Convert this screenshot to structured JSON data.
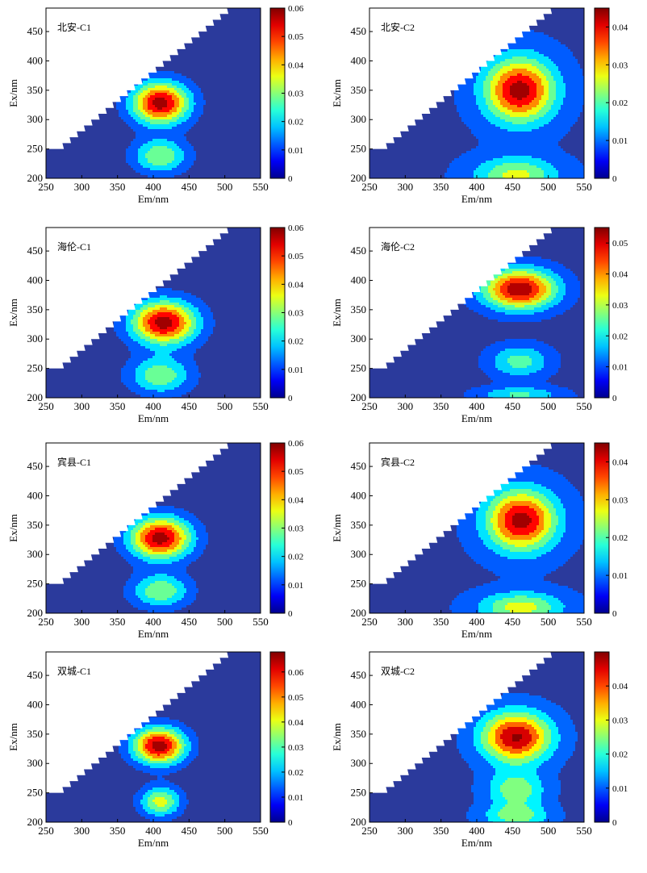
{
  "chart_data": [
    {
      "type": "heatmap",
      "panel_label": "北安-C1",
      "xlabel": "Em/nm",
      "ylabel": "Ex/nm",
      "xlim": [
        250,
        550
      ],
      "ylim": [
        200,
        490
      ],
      "xticks": [
        "250",
        "300",
        "350",
        "400",
        "450",
        "500",
        "550"
      ],
      "yticks": [
        "200",
        "250",
        "300",
        "350",
        "400",
        "450"
      ],
      "colorbar_ticks": [
        "0",
        "0.01",
        "0.02",
        "0.03",
        "0.04",
        "0.05",
        "0.06"
      ],
      "colorbar_range": [
        0,
        0.06
      ],
      "masked_region": "Em < Ex + 25",
      "peaks": [
        {
          "em": 410,
          "ex": 328,
          "value": 0.06,
          "sx": 28,
          "sy": 25
        },
        {
          "em": 410,
          "ex": 238,
          "value": 0.032,
          "sx": 26,
          "sy": 20
        }
      ],
      "background": 0.003,
      "contour_levels": [
        0.008,
        0.016,
        0.024,
        0.032,
        0.04,
        0.048,
        0.056
      ],
      "colors": {
        "background": "#2b3a9c",
        "peak": "#7d1515"
      }
    },
    {
      "type": "heatmap",
      "panel_label": "北安-C2",
      "xlabel": "Em/nm",
      "ylabel": "Ex/nm",
      "xlim": [
        250,
        550
      ],
      "ylim": [
        200,
        490
      ],
      "xticks": [
        "250",
        "300",
        "350",
        "400",
        "450",
        "500",
        "550"
      ],
      "yticks": [
        "200",
        "250",
        "300",
        "350",
        "400",
        "450"
      ],
      "colorbar_ticks": [
        "0",
        "0.01",
        "0.02",
        "0.03",
        "0.04"
      ],
      "colorbar_range": [
        0,
        0.045
      ],
      "masked_region": "Em < Ex + 25",
      "peaks": [
        {
          "em": 460,
          "ex": 350,
          "value": 0.045,
          "sx": 34,
          "sy": 38
        },
        {
          "em": 455,
          "ex": 205,
          "value": 0.026,
          "sx": 40,
          "sy": 22
        }
      ],
      "background": 0.005,
      "contour_levels": [
        0.006,
        0.012,
        0.018,
        0.024,
        0.03,
        0.036,
        0.042
      ],
      "colors": {
        "background": "#2b3a9c",
        "peak": "#7d1515"
      }
    },
    {
      "type": "heatmap",
      "panel_label": "海伦-C1",
      "xlabel": "Em/nm",
      "ylabel": "Ex/nm",
      "xlim": [
        250,
        550
      ],
      "ylim": [
        200,
        490
      ],
      "xticks": [
        "250",
        "300",
        "350",
        "400",
        "450",
        "500",
        "550"
      ],
      "yticks": [
        "200",
        "250",
        "300",
        "350",
        "400",
        "450"
      ],
      "colorbar_ticks": [
        "0",
        "0.01",
        "0.02",
        "0.03",
        "0.04",
        "0.05",
        "0.06"
      ],
      "colorbar_range": [
        0,
        0.06
      ],
      "masked_region": "Em < Ex + 25",
      "peaks": [
        {
          "em": 415,
          "ex": 328,
          "value": 0.06,
          "sx": 32,
          "sy": 26
        },
        {
          "em": 410,
          "ex": 238,
          "value": 0.03,
          "sx": 30,
          "sy": 22
        }
      ],
      "background": 0.003,
      "contour_levels": [
        0.008,
        0.016,
        0.024,
        0.032,
        0.04,
        0.048,
        0.056
      ],
      "colors": {
        "background": "#2b3a9c",
        "peak": "#7d1515"
      }
    },
    {
      "type": "heatmap",
      "panel_label": "海伦-C2",
      "xlabel": "Em/nm",
      "ylabel": "Ex/nm",
      "xlim": [
        250,
        550
      ],
      "ylim": [
        200,
        490
      ],
      "xticks": [
        "250",
        "300",
        "350",
        "400",
        "450",
        "500",
        "550"
      ],
      "yticks": [
        "200",
        "250",
        "300",
        "350",
        "400",
        "450"
      ],
      "colorbar_ticks": [
        "0",
        "0.01",
        "0.02",
        "0.03",
        "0.04",
        "0.05"
      ],
      "colorbar_range": [
        0,
        0.055
      ],
      "masked_region": "Em < Ex + 25",
      "peaks": [
        {
          "em": 460,
          "ex": 385,
          "value": 0.055,
          "sx": 36,
          "sy": 24
        },
        {
          "em": 460,
          "ex": 262,
          "value": 0.024,
          "sx": 30,
          "sy": 20
        },
        {
          "em": 460,
          "ex": 205,
          "value": 0.022,
          "sx": 42,
          "sy": 10
        }
      ],
      "background": 0.004,
      "contour_levels": [
        0.007,
        0.014,
        0.021,
        0.028,
        0.035,
        0.042,
        0.049
      ],
      "colors": {
        "background": "#2b3a9c",
        "peak": "#7d1515"
      }
    },
    {
      "type": "heatmap",
      "panel_label": "宾县-C1",
      "xlabel": "Em/nm",
      "ylabel": "Ex/nm",
      "xlim": [
        250,
        550
      ],
      "ylim": [
        200,
        490
      ],
      "xticks": [
        "250",
        "300",
        "350",
        "400",
        "450",
        "500",
        "550"
      ],
      "yticks": [
        "200",
        "250",
        "300",
        "350",
        "400",
        "450"
      ],
      "colorbar_ticks": [
        "0",
        "0.01",
        "0.02",
        "0.03",
        "0.04",
        "0.05",
        "0.06"
      ],
      "colorbar_range": [
        0,
        0.06
      ],
      "masked_region": "Em < Ex + 25",
      "peaks": [
        {
          "em": 410,
          "ex": 328,
          "value": 0.06,
          "sx": 30,
          "sy": 25
        },
        {
          "em": 410,
          "ex": 238,
          "value": 0.031,
          "sx": 28,
          "sy": 20
        }
      ],
      "background": 0.003,
      "contour_levels": [
        0.008,
        0.016,
        0.024,
        0.032,
        0.04,
        0.048,
        0.056
      ],
      "colors": {
        "background": "#2b3a9c",
        "peak": "#7d1515"
      }
    },
    {
      "type": "heatmap",
      "panel_label": "宾县-C2",
      "xlabel": "Em/nm",
      "ylabel": "Ex/nm",
      "xlim": [
        250,
        550
      ],
      "ylim": [
        200,
        490
      ],
      "xticks": [
        "250",
        "300",
        "350",
        "400",
        "450",
        "500",
        "550"
      ],
      "yticks": [
        "200",
        "250",
        "300",
        "350",
        "400",
        "450"
      ],
      "colorbar_ticks": [
        "0",
        "0.01",
        "0.02",
        "0.03",
        "0.04"
      ],
      "colorbar_range": [
        0,
        0.045
      ],
      "masked_region": "Em < Ex + 25",
      "peaks": [
        {
          "em": 462,
          "ex": 358,
          "value": 0.045,
          "sx": 34,
          "sy": 36
        },
        {
          "em": 462,
          "ex": 210,
          "value": 0.027,
          "sx": 40,
          "sy": 18
        }
      ],
      "background": 0.005,
      "contour_levels": [
        0.006,
        0.012,
        0.018,
        0.024,
        0.03,
        0.036,
        0.042
      ],
      "colors": {
        "background": "#2b3a9c",
        "peak": "#7d1515"
      }
    },
    {
      "type": "heatmap",
      "panel_label": "双城-C1",
      "xlabel": "Em/nm",
      "ylabel": "Ex/nm",
      "xlim": [
        250,
        550
      ],
      "ylim": [
        200,
        490
      ],
      "xticks": [
        "250",
        "300",
        "350",
        "400",
        "450",
        "500",
        "550"
      ],
      "yticks": [
        "200",
        "250",
        "300",
        "350",
        "400",
        "450"
      ],
      "colorbar_ticks": [
        "0",
        "0.01",
        "0.02",
        "0.03",
        "0.04",
        "0.05",
        "0.06"
      ],
      "colorbar_range": [
        0,
        0.068
      ],
      "masked_region": "Em < Ex + 25",
      "peaks": [
        {
          "em": 408,
          "ex": 330,
          "value": 0.068,
          "sx": 26,
          "sy": 22
        },
        {
          "em": 410,
          "ex": 235,
          "value": 0.04,
          "sx": 20,
          "sy": 18
        }
      ],
      "background": 0.003,
      "contour_levels": [
        0.009,
        0.018,
        0.027,
        0.036,
        0.045,
        0.054,
        0.063
      ],
      "colors": {
        "background": "#2b3a9c",
        "peak": "#7d1515"
      }
    },
    {
      "type": "heatmap",
      "panel_label": "双城-C2",
      "xlabel": "Em/nm",
      "ylabel": "Ex/nm",
      "xlim": [
        250,
        550
      ],
      "ylim": [
        200,
        490
      ],
      "xticks": [
        "250",
        "300",
        "350",
        "400",
        "450",
        "500",
        "550"
      ],
      "yticks": [
        "200",
        "250",
        "300",
        "350",
        "400",
        "450"
      ],
      "colorbar_ticks": [
        "0",
        "0.01",
        "0.02",
        "0.03",
        "0.04"
      ],
      "colorbar_range": [
        0,
        0.05
      ],
      "masked_region": "Em < Ex + 25",
      "peaks": [
        {
          "em": 455,
          "ex": 345,
          "value": 0.05,
          "sx": 34,
          "sy": 30
        },
        {
          "em": 455,
          "ex": 255,
          "value": 0.026,
          "sx": 28,
          "sy": 22
        },
        {
          "em": 455,
          "ex": 210,
          "value": 0.024,
          "sx": 32,
          "sy": 14
        }
      ],
      "background": 0.005,
      "contour_levels": [
        0.007,
        0.014,
        0.021,
        0.028,
        0.035,
        0.042,
        0.049
      ],
      "colors": {
        "background": "#2b3a9c",
        "peak": "#7d1515"
      }
    }
  ]
}
